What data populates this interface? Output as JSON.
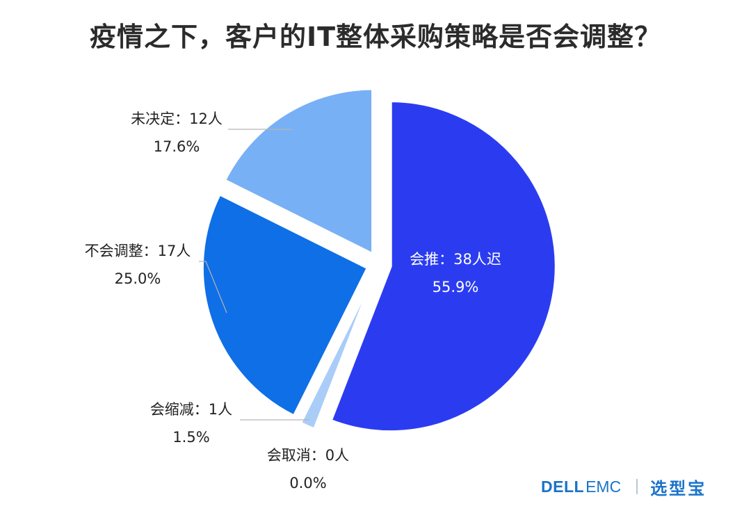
{
  "title": "疫情之下，客户的IT整体采购策略是否会调整？",
  "logo": {
    "dell": "DELL",
    "emc": "EMC",
    "brand": "选型宝"
  },
  "colors": {
    "slice_delay": "#2b3cf0",
    "slice_reduce": "#a9cdf7",
    "slice_cancel": "#a9cdf7",
    "slice_no_change": "#0f6fe6",
    "slice_undecided": "#78b0f5",
    "leader": "#b5b5b5"
  },
  "chart_data": {
    "type": "pie",
    "title": "疫情之下，客户的IT整体采购策略是否会调整？",
    "slices": [
      {
        "label": "会推：38人迟",
        "value": 38,
        "percent": "55.9%",
        "color": "#2b3cf0"
      },
      {
        "label": "会缩减：1人",
        "value": 1,
        "percent": "1.5%",
        "color": "#a9cdf7"
      },
      {
        "label": "会取消：0人",
        "value": 0,
        "percent": "0.0%",
        "color": "#a9cdf7"
      },
      {
        "label": "不会调整：17人",
        "value": 17,
        "percent": "25.0%",
        "color": "#0f6fe6"
      },
      {
        "label": "未决定：12人",
        "value": 12,
        "percent": "17.6%",
        "color": "#78b0f5"
      }
    ]
  }
}
